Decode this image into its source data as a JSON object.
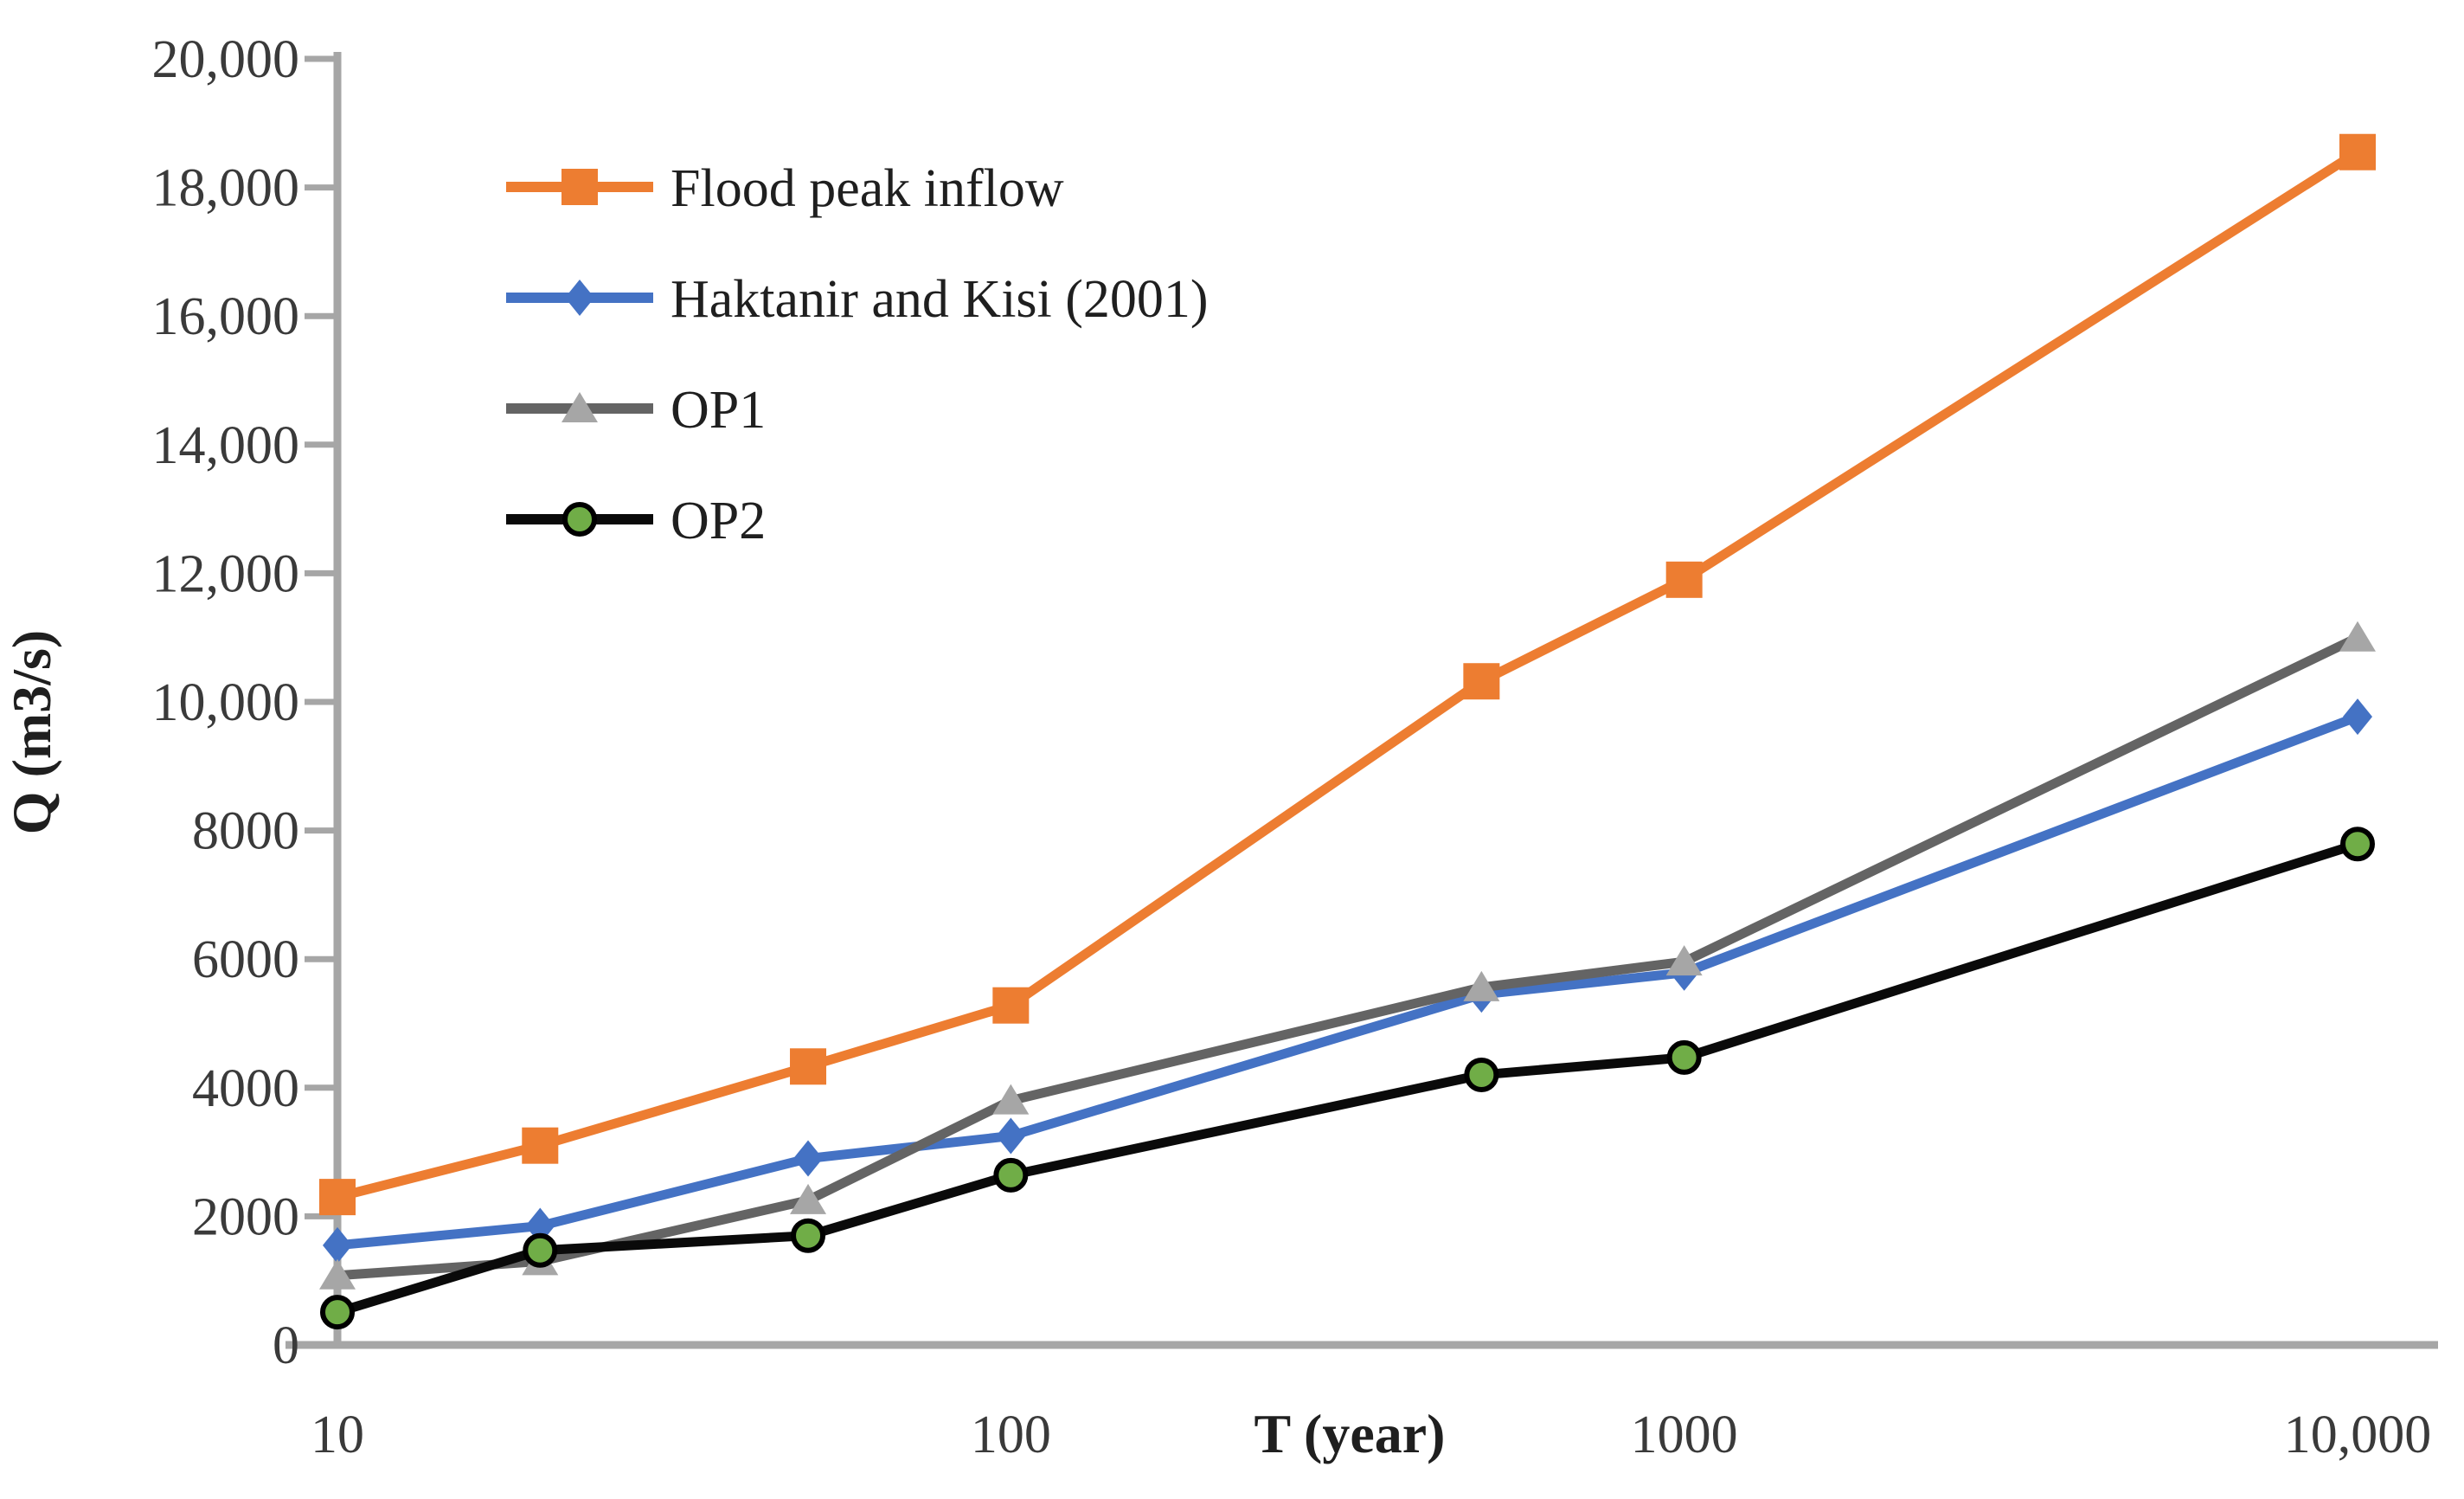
{
  "chart_data": {
    "type": "line",
    "title": "",
    "xlabel": "T (year)",
    "ylabel": "Q (m3/s)",
    "x_scale": "log",
    "xlim": [
      10,
      10000
    ],
    "ylim": [
      0,
      20000
    ],
    "grid": "off",
    "legend_position": "upper-left-inside",
    "x": [
      10,
      20,
      50,
      100,
      500,
      1000,
      10000
    ],
    "x_tick_labels": [
      {
        "value": 10,
        "label": "10"
      },
      {
        "value": 100,
        "label": "100"
      },
      {
        "value": 1000,
        "label": "1000"
      },
      {
        "value": 10000,
        "label": "10,000"
      }
    ],
    "y_ticks": [
      {
        "value": 20000,
        "label": "20,000"
      },
      {
        "value": 18000,
        "label": "18,000"
      },
      {
        "value": 16000,
        "label": "16,000"
      },
      {
        "value": 14000,
        "label": "14,000"
      },
      {
        "value": 12000,
        "label": "12,000"
      },
      {
        "value": 10000,
        "label": "10,000"
      },
      {
        "value": 8000,
        "label": "8000"
      },
      {
        "value": 6000,
        "label": "6000"
      },
      {
        "value": 4000,
        "label": "4000"
      },
      {
        "value": 2000,
        "label": "2000"
      },
      {
        "value": 0,
        "label": "0"
      }
    ],
    "series": [
      {
        "name": "Flood peak inflow",
        "line_color": "#ED7D31",
        "marker": "square",
        "marker_color": "#ED7D31",
        "marker_stroke": "none",
        "values": [
          2300,
          3100,
          4330,
          5280,
          10320,
          11900,
          18550
        ]
      },
      {
        "name": "Haktanir and Kisi (2001)",
        "line_color": "#4472C4",
        "marker": "diamond",
        "marker_color": "#4472C4",
        "marker_stroke": "none",
        "values": [
          1550,
          1850,
          2900,
          3250,
          5450,
          5790,
          9770
        ]
      },
      {
        "name": "OP1",
        "line_color": "#646464",
        "marker": "triangle",
        "marker_color": "#A6A6A6",
        "marker_stroke": "none",
        "values": [
          1080,
          1300,
          2250,
          3800,
          5560,
          5960,
          11000
        ]
      },
      {
        "name": "OP2",
        "line_color": "#0a0a0a",
        "marker": "circle",
        "marker_color": "#70AD47",
        "marker_stroke": "#000000",
        "values": [
          510,
          1470,
          1700,
          2640,
          4200,
          4470,
          7790
        ]
      }
    ],
    "axis_color": "#A6A6A6",
    "text_color": "#3a3a3a"
  }
}
